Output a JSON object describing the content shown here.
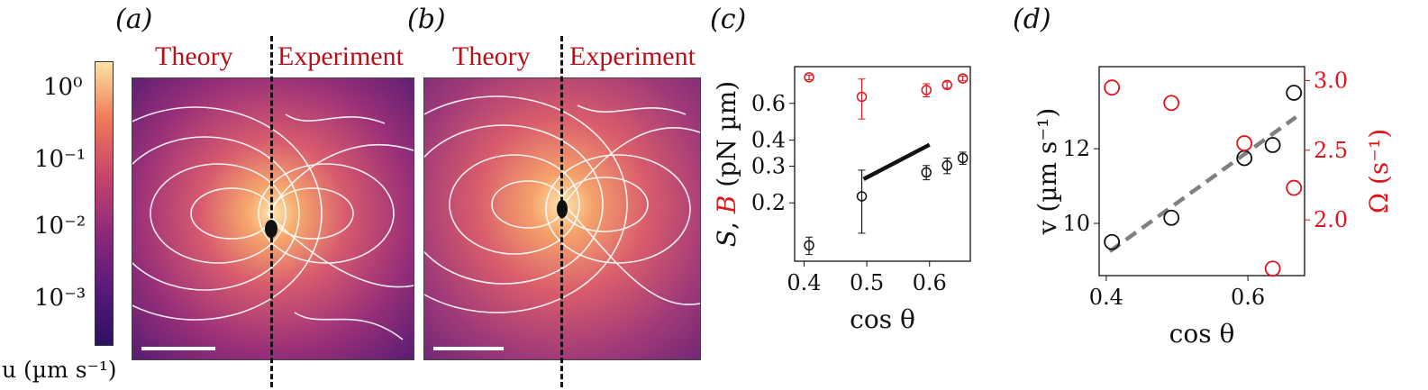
{
  "panels": {
    "a": "(a)",
    "b": "(b)",
    "c": "(c)",
    "d": "(d)"
  },
  "field_titles": {
    "theory": "Theory",
    "experiment": "Experiment"
  },
  "colors": {
    "theory_title": "#b3121b",
    "black_series": "#111111",
    "red_series": "#e0141b",
    "fit_line": "#808080"
  },
  "colorbar": {
    "label": "u (µm s⁻¹)",
    "ticks": [
      "10⁰",
      "10⁻¹",
      "10⁻²",
      "10⁻³"
    ],
    "colormap": "plasma-like (dark purple to pale yellow)"
  },
  "chart_data": [
    {
      "panel": "c",
      "type": "scatter",
      "xlabel": "cos θ",
      "ylabel_parts": [
        "S",
        ", ",
        "B",
        " (pN µm)"
      ],
      "ylabel_colors": [
        "#111111",
        "#111111",
        "#e0141b",
        "#111111"
      ],
      "x_ticks": [
        "0.4",
        "0.5",
        "0.6"
      ],
      "y_ticks": [
        "0.2",
        "0.3",
        "0.4",
        "0.6"
      ],
      "ylim": [
        0.105,
        0.9
      ],
      "xlim": [
        0.385,
        0.665
      ],
      "y_scale": "log",
      "series": [
        {
          "color": "#111111",
          "x": [
            0.408,
            0.492,
            0.595,
            0.628,
            0.653
          ],
          "y": [
            0.125,
            0.215,
            0.28,
            0.302,
            0.328
          ],
          "err": [
            0.012,
            0.072,
            0.022,
            0.026,
            0.022
          ]
        },
        {
          "color": "#e0141b",
          "x": [
            0.408,
            0.492,
            0.595,
            0.628,
            0.653
          ],
          "y": [
            0.8,
            0.645,
            0.695,
            0.735,
            0.79
          ],
          "err": [
            0.02,
            0.14,
            0.05,
            0.025,
            0.02
          ]
        }
      ],
      "line": {
        "color": "#111111",
        "x": [
          0.495,
          0.6
        ],
        "y": [
          0.26,
          0.38
        ]
      }
    },
    {
      "panel": "d",
      "type": "scatter",
      "xlabel": "cos θ",
      "ylabel_left": "v (µm s⁻¹)",
      "ylabel_right": "Ω (s⁻¹)",
      "x_ticks": [
        "0.4",
        "0.6"
      ],
      "y_ticks_left": [
        "10",
        "12"
      ],
      "y_ticks_right": [
        "2.0",
        "2.5",
        "3.0"
      ],
      "xlim": [
        0.39,
        0.68
      ],
      "ylim_left": [
        8.6,
        14.2
      ],
      "ylim_right": [
        1.6,
        3.1
      ],
      "series": [
        {
          "axis": "left",
          "color": "#111111",
          "x": [
            0.408,
            0.492,
            0.595,
            0.635,
            0.665
          ],
          "y": [
            9.5,
            10.15,
            11.75,
            12.1,
            13.5
          ]
        },
        {
          "axis": "right",
          "color": "#e0141b",
          "x": [
            0.408,
            0.492,
            0.595,
            0.635,
            0.665
          ],
          "y": [
            2.95,
            2.84,
            2.55,
            1.65,
            2.23
          ]
        }
      ],
      "fit": {
        "color": "#808080",
        "x": [
          0.405,
          0.668
        ],
        "y": [
          9.25,
          12.85
        ]
      }
    }
  ]
}
